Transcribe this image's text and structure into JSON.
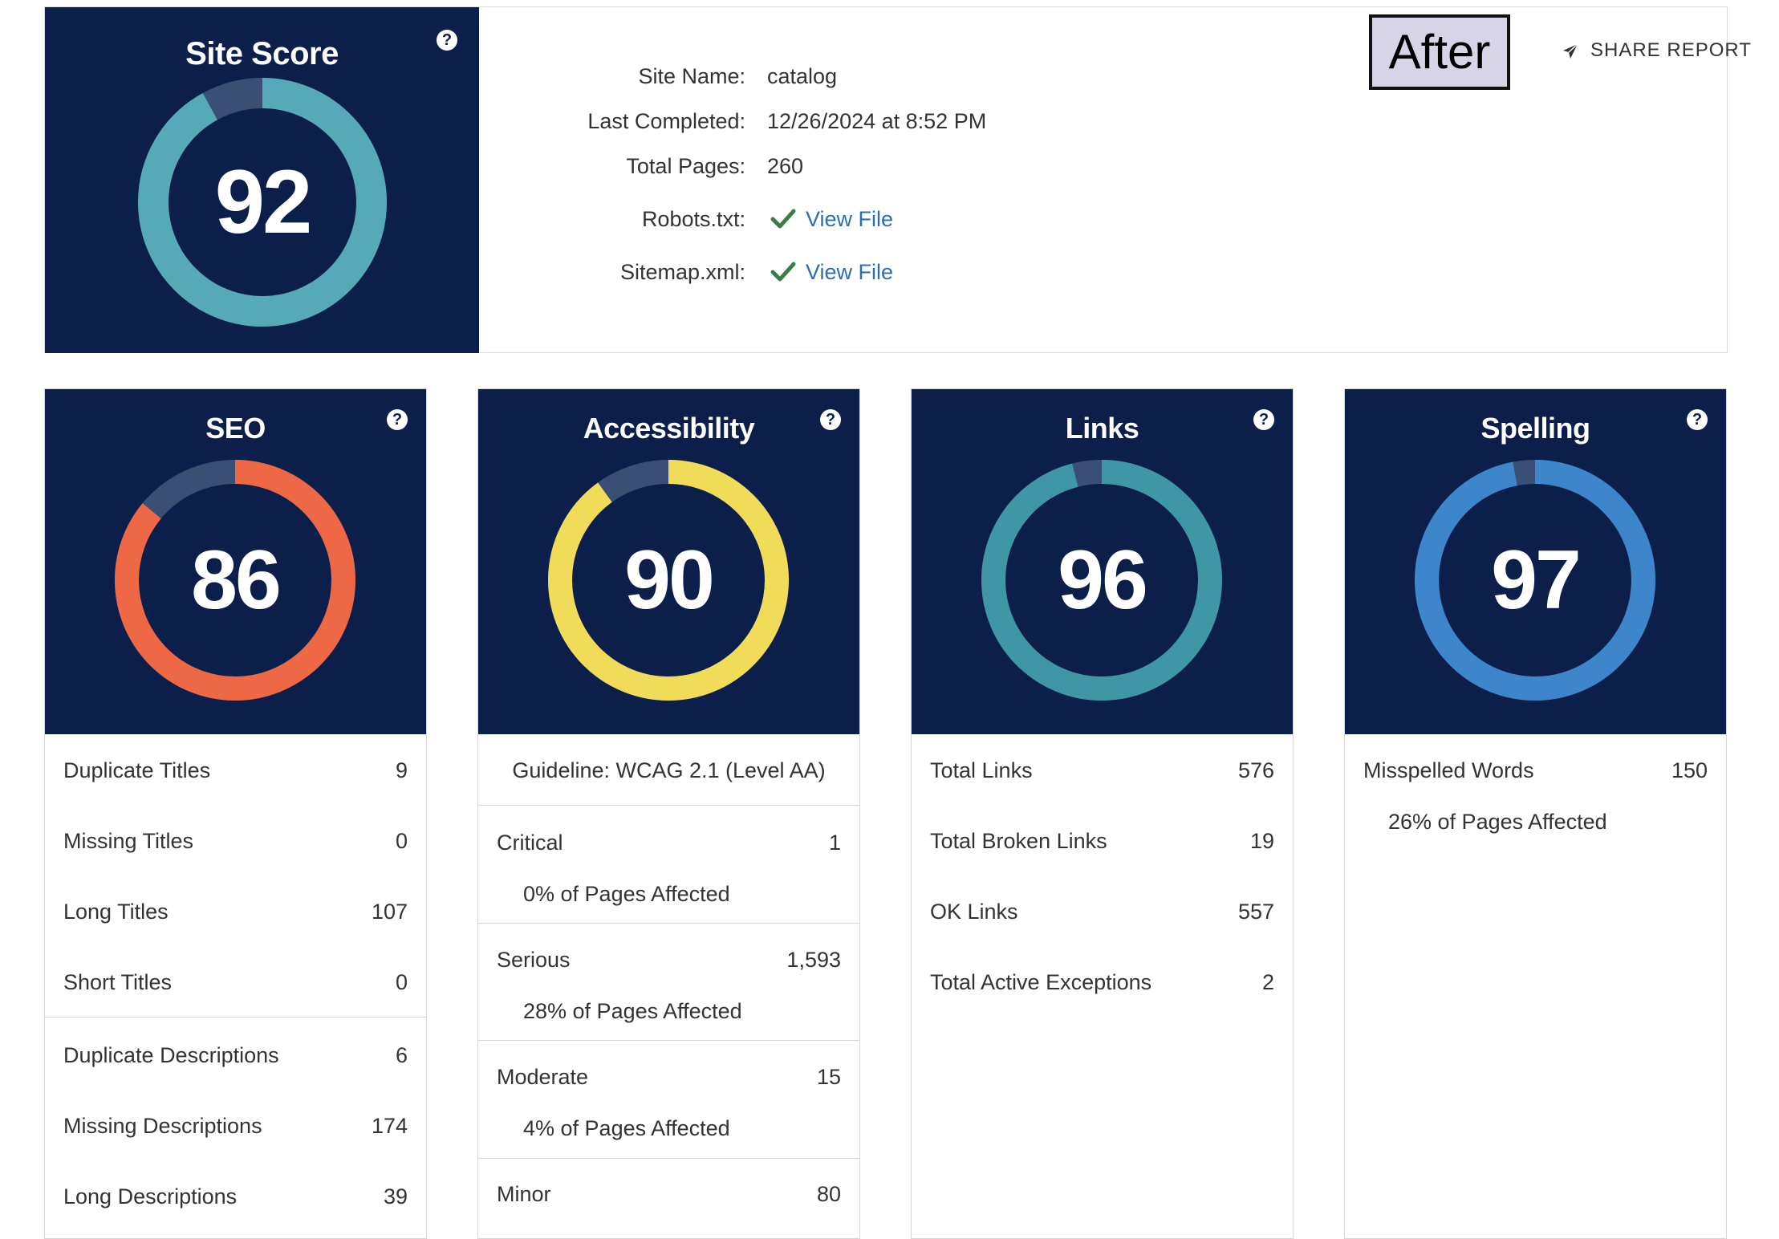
{
  "site_score": {
    "title": "Site Score",
    "score": "92",
    "score_value": 92,
    "ring_color": "#56aab7",
    "help_icon": "question-circle-icon"
  },
  "site_info": {
    "site_name_label": "Site Name:",
    "site_name": "catalog",
    "last_completed_label": "Last Completed:",
    "last_completed": "12/26/2024 at 8:52 PM",
    "total_pages_label": "Total Pages:",
    "total_pages": "260",
    "robots_label": "Robots.txt:",
    "robots_link": "View File",
    "sitemap_label": "Sitemap.xml:",
    "sitemap_link": "View File",
    "check_color": "#3a7d44"
  },
  "after_badge": "After",
  "share_report": "SHARE REPORT",
  "seo": {
    "title": "SEO",
    "score": "86",
    "score_value": 86,
    "ring_color": "#ee6846",
    "rows": [
      {
        "label": "Duplicate Titles",
        "value": "9"
      },
      {
        "label": "Missing Titles",
        "value": "0"
      },
      {
        "label": "Long Titles",
        "value": "107"
      },
      {
        "label": "Short Titles",
        "value": "0"
      },
      {
        "label": "Duplicate Descriptions",
        "value": "6"
      },
      {
        "label": "Missing Descriptions",
        "value": "174"
      },
      {
        "label": "Long Descriptions",
        "value": "39"
      }
    ]
  },
  "accessibility": {
    "title": "Accessibility",
    "score": "90",
    "score_value": 90,
    "ring_color": "#f0dc58",
    "guideline": "Guideline: WCAG 2.1 (Level AA)",
    "groups": [
      {
        "label": "Critical",
        "value": "1",
        "affected": "0% of Pages Affected"
      },
      {
        "label": "Serious",
        "value": "1,593",
        "affected": "28% of Pages Affected"
      },
      {
        "label": "Moderate",
        "value": "15",
        "affected": "4% of Pages Affected"
      },
      {
        "label": "Minor",
        "value": "80"
      }
    ]
  },
  "links": {
    "title": "Links",
    "score": "96",
    "score_value": 96,
    "ring_color": "#3f97a6",
    "rows": [
      {
        "label": "Total Links",
        "value": "576"
      },
      {
        "label": "Total Broken Links",
        "value": "19"
      },
      {
        "label": "OK Links",
        "value": "557"
      },
      {
        "label": "Total Active Exceptions",
        "value": "2"
      }
    ]
  },
  "spelling": {
    "title": "Spelling",
    "score": "97",
    "score_value": 97,
    "ring_color": "#3d86cb",
    "rows": [
      {
        "label": "Misspelled Words",
        "value": "150"
      }
    ],
    "affected": "26% of Pages Affected"
  },
  "track_color": "#3a4f74"
}
